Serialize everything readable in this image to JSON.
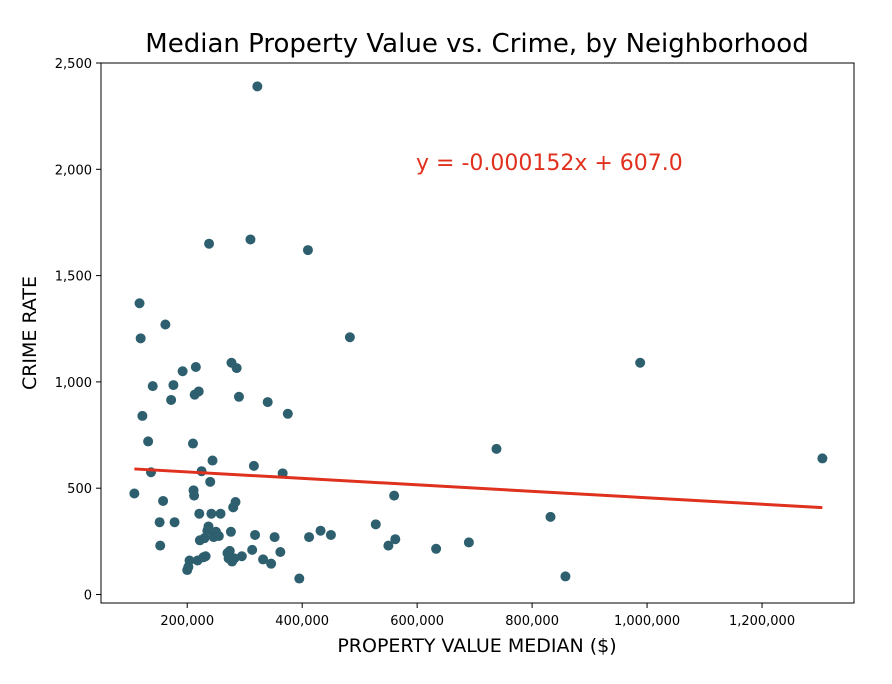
{
  "chart_data": {
    "type": "scatter",
    "title": "Median Property Value vs. Crime, by Neighborhood",
    "xlabel": "PROPERTY VALUE MEDIAN ($)",
    "ylabel": "CRIME RATE",
    "xlim": [
      50000,
      1360000
    ],
    "ylim": [
      -40,
      2500
    ],
    "xticks": [
      200000,
      400000,
      600000,
      800000,
      1000000,
      1200000
    ],
    "xtick_labels": [
      "200,000",
      "400,000",
      "600,000",
      "800,000",
      "1,000,000",
      "1,200,000"
    ],
    "yticks": [
      0,
      500,
      1000,
      1500,
      2000,
      2500
    ],
    "ytick_labels": [
      "0",
      "500",
      "1,000",
      "1,500",
      "2,000",
      "2,500"
    ],
    "grid": false,
    "point_color": "#2e5f6e",
    "series": [
      {
        "points": [
          [
            108000,
            475
          ],
          [
            117000,
            1370
          ],
          [
            119000,
            1205
          ],
          [
            122000,
            840
          ],
          [
            132000,
            720
          ],
          [
            137000,
            575
          ],
          [
            140000,
            980
          ],
          [
            152000,
            340
          ],
          [
            153000,
            230
          ],
          [
            158000,
            440
          ],
          [
            162000,
            1270
          ],
          [
            172000,
            915
          ],
          [
            176000,
            985
          ],
          [
            178000,
            340
          ],
          [
            192000,
            1050
          ],
          [
            200000,
            115
          ],
          [
            202000,
            130
          ],
          [
            204000,
            160
          ],
          [
            210000,
            710
          ],
          [
            211000,
            490
          ],
          [
            212000,
            465
          ],
          [
            213000,
            940
          ],
          [
            215000,
            1070
          ],
          [
            218000,
            160
          ],
          [
            220000,
            955
          ],
          [
            221000,
            380
          ],
          [
            222000,
            255
          ],
          [
            225000,
            580
          ],
          [
            228000,
            175
          ],
          [
            230000,
            265
          ],
          [
            232000,
            180
          ],
          [
            235000,
            300
          ],
          [
            237000,
            320
          ],
          [
            238000,
            1650
          ],
          [
            240000,
            530
          ],
          [
            242000,
            380
          ],
          [
            244000,
            630
          ],
          [
            246000,
            270
          ],
          [
            250000,
            295
          ],
          [
            255000,
            275
          ],
          [
            258000,
            380
          ],
          [
            270000,
            195
          ],
          [
            272000,
            170
          ],
          [
            274000,
            205
          ],
          [
            276000,
            295
          ],
          [
            277000,
            1090
          ],
          [
            278000,
            155
          ],
          [
            280000,
            410
          ],
          [
            282000,
            170
          ],
          [
            284000,
            435
          ],
          [
            286000,
            1065
          ],
          [
            290000,
            930
          ],
          [
            295000,
            180
          ],
          [
            310000,
            1670
          ],
          [
            313000,
            210
          ],
          [
            316000,
            605
          ],
          [
            318000,
            280
          ],
          [
            322000,
            2390
          ],
          [
            332000,
            165
          ],
          [
            340000,
            905
          ],
          [
            346000,
            145
          ],
          [
            352000,
            270
          ],
          [
            362000,
            200
          ],
          [
            366000,
            570
          ],
          [
            375000,
            850
          ],
          [
            395000,
            75
          ],
          [
            410000,
            1620
          ],
          [
            412000,
            270
          ],
          [
            432000,
            300
          ],
          [
            450000,
            280
          ],
          [
            483000,
            1210
          ],
          [
            528000,
            330
          ],
          [
            550000,
            230
          ],
          [
            560000,
            465
          ],
          [
            562000,
            260
          ],
          [
            633000,
            215
          ],
          [
            690000,
            245
          ],
          [
            738000,
            685
          ],
          [
            832000,
            365
          ],
          [
            858000,
            85
          ],
          [
            988000,
            1090
          ],
          [
            1305000,
            640
          ]
        ]
      }
    ],
    "regression": {
      "slope": -0.000152,
      "intercept": 607.0,
      "x_range": [
        108000,
        1305000
      ],
      "color": "#e0301e",
      "equation_label": "y = -0.000152x + 607.0",
      "label_position": "upper-middle"
    }
  }
}
